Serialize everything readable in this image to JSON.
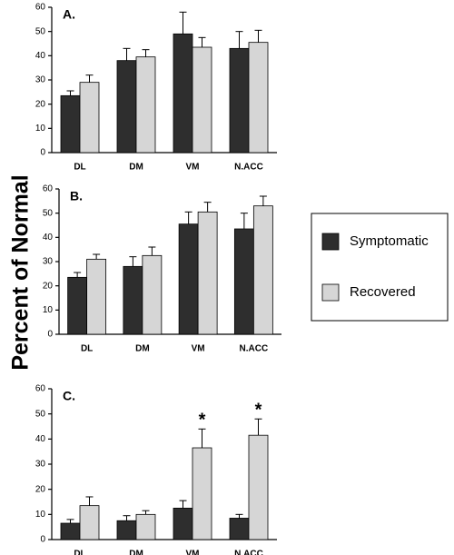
{
  "chart_data": [
    {
      "type": "bar",
      "title": "A.",
      "categories": [
        "DL",
        "DM",
        "VM",
        "N.ACC"
      ],
      "series": [
        {
          "name": "Symptomatic",
          "color": "#2e2e2e",
          "values": [
            23.5,
            38,
            49,
            43
          ],
          "errors": [
            2,
            5,
            9,
            7
          ]
        },
        {
          "name": "Recovered",
          "color": "#d6d6d6",
          "values": [
            29,
            39.5,
            43.5,
            45.5
          ],
          "errors": [
            3,
            3,
            4,
            5
          ]
        }
      ],
      "ylim": [
        0,
        60
      ],
      "yticks": [
        0,
        10,
        20,
        30,
        40,
        50,
        60
      ]
    },
    {
      "type": "bar",
      "title": "B.",
      "ylabel": "Percent of Normal",
      "categories": [
        "DL",
        "DM",
        "VM",
        "N.ACC"
      ],
      "series": [
        {
          "name": "Symptomatic",
          "color": "#2e2e2e",
          "values": [
            23.5,
            28,
            45.5,
            43.5
          ],
          "errors": [
            2,
            4,
            5,
            6.5
          ]
        },
        {
          "name": "Recovered",
          "color": "#d6d6d6",
          "values": [
            31,
            32.5,
            50.5,
            53
          ],
          "errors": [
            2,
            3.5,
            4,
            4
          ]
        }
      ],
      "ylim": [
        0,
        60
      ],
      "yticks": [
        0,
        10,
        20,
        30,
        40,
        50,
        60
      ]
    },
    {
      "type": "bar",
      "title": "C.",
      "categories": [
        "DL",
        "DM",
        "VM",
        "N.ACC"
      ],
      "series": [
        {
          "name": "Symptomatic",
          "color": "#2e2e2e",
          "values": [
            6.5,
            7.5,
            12.5,
            8.5
          ],
          "errors": [
            1.5,
            2,
            3,
            1.5
          ]
        },
        {
          "name": "Recovered",
          "color": "#d6d6d6",
          "values": [
            13.5,
            10,
            36.5,
            41.5
          ],
          "errors": [
            3.5,
            1.5,
            7.5,
            6.5
          ],
          "significance": [
            null,
            null,
            "*",
            "*"
          ]
        }
      ],
      "ylim": [
        0,
        60
      ],
      "yticks": [
        0,
        10,
        20,
        30,
        40,
        50,
        60
      ]
    }
  ]
}
